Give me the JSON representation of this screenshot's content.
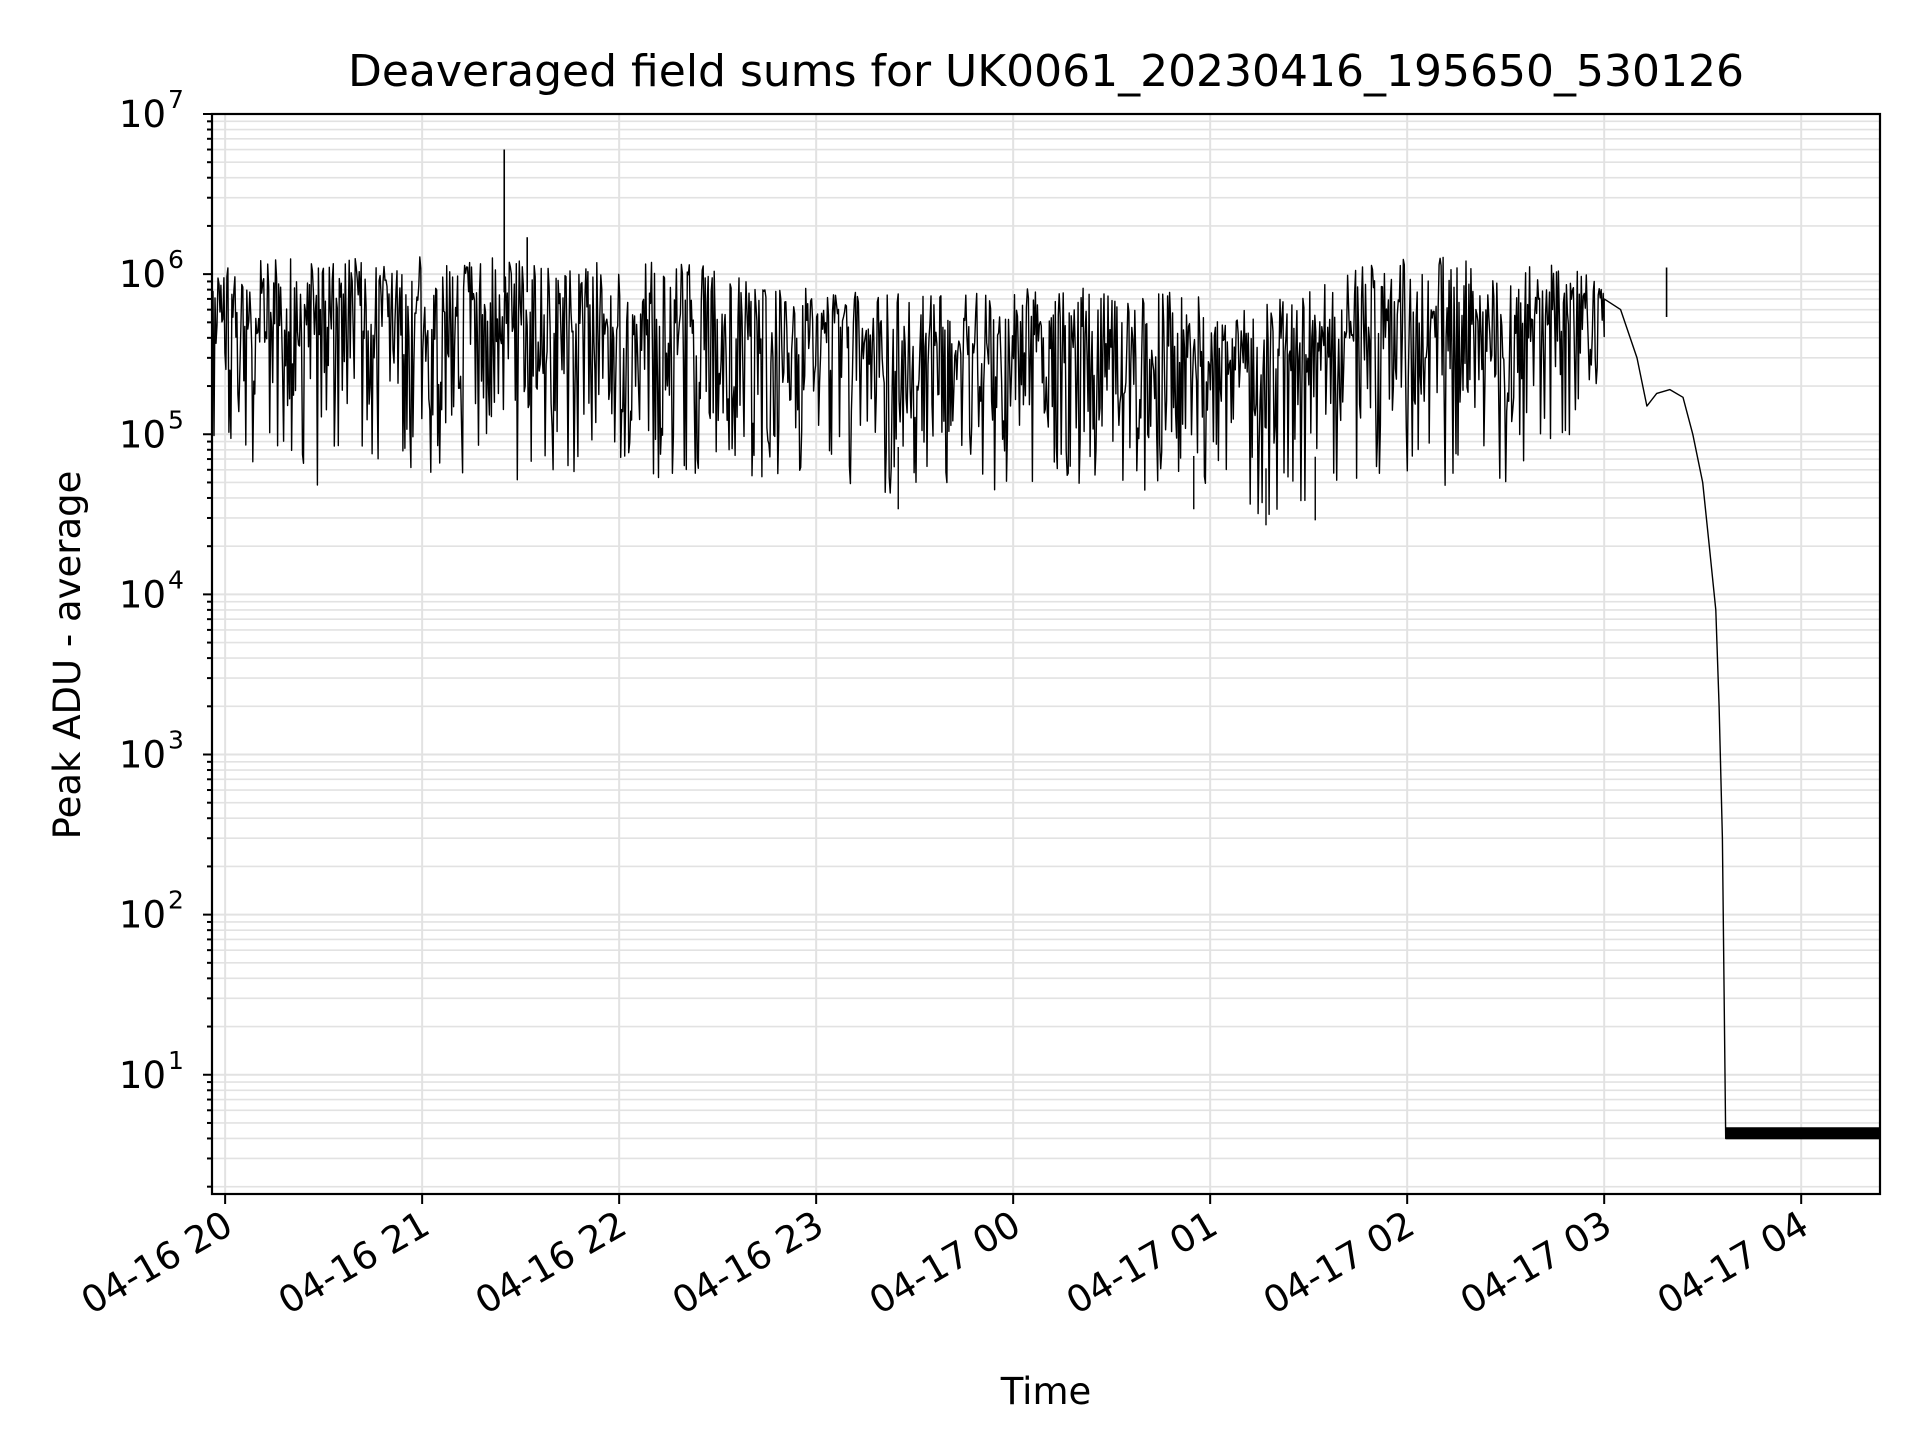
{
  "chart_data": {
    "type": "line",
    "title": "Deaveraged field sums for UK0061_20230416_195650_530126",
    "xlabel": "Time",
    "ylabel": "Peak ADU - average",
    "x_scale": "time",
    "y_scale": "log",
    "xlim": [
      "2023-04-16 19:56",
      "2023-04-17 04:24"
    ],
    "ylim": [
      1.8,
      10000000
    ],
    "grid": true,
    "legend": "none",
    "x_ticks": [
      {
        "value": "2023-04-16 20:00",
        "label": "04-16 20"
      },
      {
        "value": "2023-04-16 21:00",
        "label": "04-16 21"
      },
      {
        "value": "2023-04-16 22:00",
        "label": "04-16 22"
      },
      {
        "value": "2023-04-16 23:00",
        "label": "04-16 23"
      },
      {
        "value": "2023-04-17 00:00",
        "label": "04-17 00"
      },
      {
        "value": "2023-04-17 01:00",
        "label": "04-17 01"
      },
      {
        "value": "2023-04-17 02:00",
        "label": "04-17 02"
      },
      {
        "value": "2023-04-17 03:00",
        "label": "04-17 03"
      },
      {
        "value": "2023-04-17 04:00",
        "label": "04-17 04"
      }
    ],
    "y_ticks": [
      {
        "value": 10,
        "base": "10",
        "exp": "1"
      },
      {
        "value": 100,
        "base": "10",
        "exp": "2"
      },
      {
        "value": 1000,
        "base": "10",
        "exp": "3"
      },
      {
        "value": 10000,
        "base": "10",
        "exp": "4"
      },
      {
        "value": 100000,
        "base": "10",
        "exp": "5"
      },
      {
        "value": 1000000,
        "base": "10",
        "exp": "6"
      },
      {
        "value": 10000000,
        "base": "10",
        "exp": "7"
      }
    ],
    "line_color": "#000000",
    "series": [
      {
        "band": [
          {
            "t": "2023-04-16 19:56",
            "low": 90000,
            "high": 1100000
          },
          {
            "t": "2023-04-16 20:15",
            "low": 50000,
            "high": 1250000
          },
          {
            "t": "2023-04-16 20:30",
            "low": 45000,
            "high": 1350000
          },
          {
            "t": "2023-04-16 20:45",
            "low": 60000,
            "high": 1200000
          },
          {
            "t": "2023-04-16 21:00",
            "low": 50000,
            "high": 1350000
          },
          {
            "t": "2023-04-16 21:15",
            "low": 55000,
            "high": 1250000
          },
          {
            "t": "2023-04-16 21:30",
            "low": 50000,
            "high": 1300000
          },
          {
            "t": "2023-04-16 21:45",
            "low": 55000,
            "high": 1200000
          },
          {
            "t": "2023-04-16 22:00",
            "low": 55000,
            "high": 1200000
          },
          {
            "t": "2023-04-16 22:15",
            "low": 50000,
            "high": 1200000
          },
          {
            "t": "2023-04-16 22:30",
            "low": 45000,
            "high": 1100000
          },
          {
            "t": "2023-04-16 22:45",
            "low": 50000,
            "high": 900000
          },
          {
            "t": "2023-04-16 23:00",
            "low": 45000,
            "high": 800000
          },
          {
            "t": "2023-04-16 23:15",
            "low": 45000,
            "high": 800000
          },
          {
            "t": "2023-04-16 23:30",
            "low": 40000,
            "high": 750000
          },
          {
            "t": "2023-04-16 23:45",
            "low": 45000,
            "high": 750000
          },
          {
            "t": "2023-04-17 00:00",
            "low": 45000,
            "high": 800000
          },
          {
            "t": "2023-04-17 00:15",
            "low": 45000,
            "high": 850000
          },
          {
            "t": "2023-04-17 00:30",
            "low": 45000,
            "high": 800000
          },
          {
            "t": "2023-04-17 00:45",
            "low": 40000,
            "high": 800000
          },
          {
            "t": "2023-04-17 01:00",
            "low": 35000,
            "high": 700000
          },
          {
            "t": "2023-04-17 01:15",
            "low": 30000,
            "high": 650000
          },
          {
            "t": "2023-04-17 01:30",
            "low": 35000,
            "high": 800000
          },
          {
            "t": "2023-04-17 01:45",
            "low": 45000,
            "high": 1100000
          },
          {
            "t": "2023-04-17 02:00",
            "low": 50000,
            "high": 1250000
          },
          {
            "t": "2023-04-17 02:15",
            "low": 45000,
            "high": 1300000
          },
          {
            "t": "2023-04-17 02:30",
            "low": 50000,
            "high": 1150000
          },
          {
            "t": "2023-04-17 02:45",
            "low": 60000,
            "high": 1200000
          },
          {
            "t": "2023-04-17 03:00",
            "low": 250000,
            "high": 900000
          }
        ],
        "points": [
          {
            "t": "2023-04-17 03:00",
            "y": 700000
          },
          {
            "t": "2023-04-17 03:05",
            "y": 600000
          },
          {
            "t": "2023-04-17 03:10",
            "y": 300000
          },
          {
            "t": "2023-04-17 03:13",
            "y": 150000
          },
          {
            "t": "2023-04-17 03:16",
            "y": 180000
          },
          {
            "t": "2023-04-17 03:20",
            "y": 190000
          },
          {
            "t": "2023-04-17 03:24",
            "y": 170000
          },
          {
            "t": "2023-04-17 03:27",
            "y": 100000
          },
          {
            "t": "2023-04-17 03:30",
            "y": 50000
          },
          {
            "t": "2023-04-17 03:32",
            "y": 20000
          },
          {
            "t": "2023-04-17 03:34",
            "y": 8000
          },
          {
            "t": "2023-04-17 03:35",
            "y": 2000
          },
          {
            "t": "2023-04-17 03:36",
            "y": 300
          },
          {
            "t": "2023-04-17 03:37",
            "y": 4
          },
          {
            "t": "2023-04-17 04:24",
            "y": 4
          }
        ],
        "spikes": [
          {
            "t": "2023-04-16 21:25",
            "y": 6000000
          },
          {
            "t": "2023-04-16 21:32",
            "y": 1700000
          },
          {
            "t": "2023-04-17 03:19",
            "y": 1100000
          }
        ],
        "dips": [
          {
            "t": "2023-04-17 01:17",
            "y": 27000
          },
          {
            "t": "2023-04-17 01:32",
            "y": 29000
          },
          {
            "t": "2023-04-16 23:25",
            "y": 34000
          },
          {
            "t": "2023-04-17 00:55",
            "y": 34000
          }
        ],
        "tail_noise": {
          "t_start": "2023-04-17 03:37",
          "t_end": "2023-04-17 04:24",
          "low": 4,
          "high": 4.7
        }
      }
    ]
  }
}
